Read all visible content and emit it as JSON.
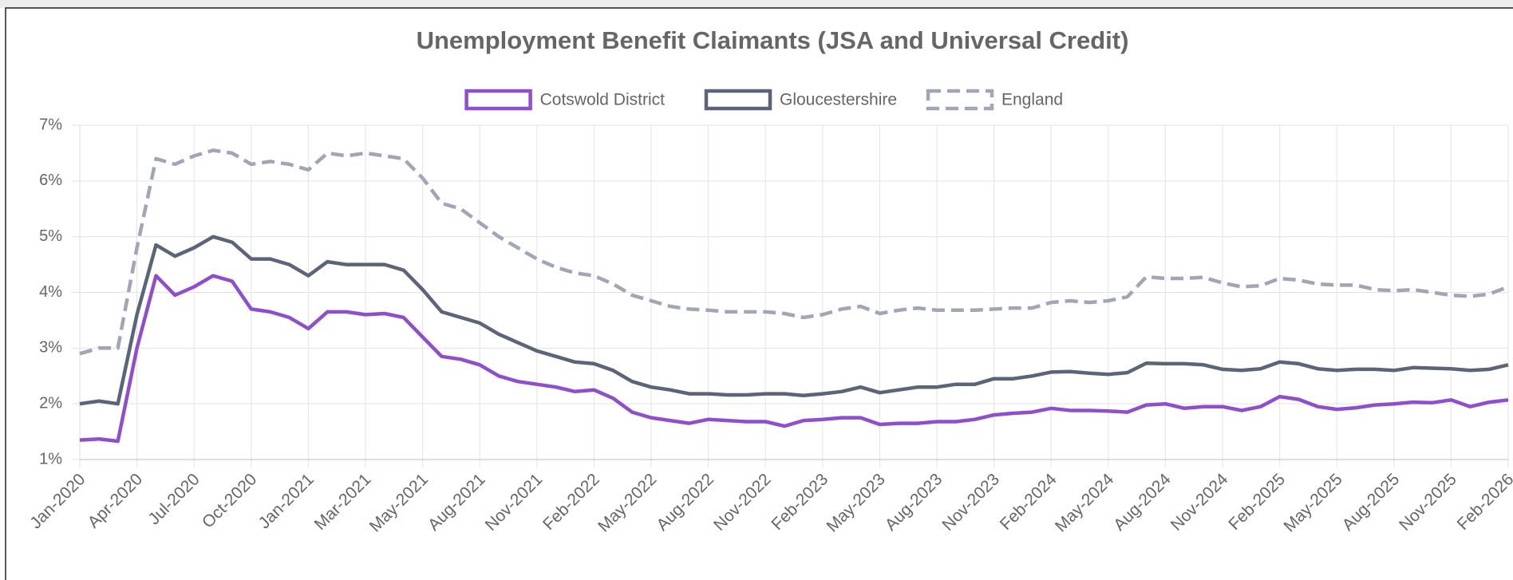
{
  "chart_data": {
    "type": "line",
    "title": "Unemployment Benefit Claimants (JSA and Universal Credit)",
    "categories": [
      "Jan-2020",
      null,
      null,
      "Apr-2020",
      null,
      null,
      "Jul-2020",
      null,
      null,
      "Oct-2020",
      null,
      null,
      "Jan-2021",
      null,
      null,
      "Mar-2021",
      null,
      null,
      "May-2021",
      null,
      null,
      "Aug-2021",
      null,
      null,
      "Nov-2021",
      null,
      null,
      "Feb-2022",
      null,
      null,
      "May-2022",
      null,
      null,
      "Aug-2022",
      null,
      null,
      "Nov-2022",
      null,
      null,
      "Feb-2023",
      null,
      null,
      "May-2023",
      null,
      null,
      "Aug-2023",
      null,
      null,
      "Nov-2023",
      null,
      null,
      "Feb-2024",
      null,
      null,
      "May-2024",
      null,
      null,
      "Aug-2024",
      null,
      null,
      "Nov-2024",
      null,
      null,
      "Feb-2025",
      null,
      null,
      "May-2025",
      null,
      null,
      "Aug-2025",
      null,
      null,
      "Nov-2025",
      null,
      null,
      "Feb-2026"
    ],
    "series": [
      {
        "name": "Cotswold District",
        "color": "#8f4fcb",
        "dashed": false,
        "values": [
          1.35,
          1.37,
          1.33,
          3.0,
          4.3,
          3.95,
          4.1,
          4.3,
          4.2,
          3.7,
          3.65,
          3.55,
          3.35,
          3.65,
          3.65,
          3.6,
          3.62,
          3.55,
          3.2,
          2.85,
          2.8,
          2.7,
          2.5,
          2.4,
          2.35,
          2.3,
          2.22,
          2.25,
          2.1,
          1.85,
          1.75,
          1.7,
          1.65,
          1.72,
          1.7,
          1.68,
          1.68,
          1.6,
          1.7,
          1.72,
          1.75,
          1.75,
          1.63,
          1.65,
          1.65,
          1.68,
          1.68,
          1.72,
          1.8,
          1.83,
          1.85,
          1.92,
          1.88,
          1.88,
          1.87,
          1.85,
          1.98,
          2.0,
          1.92,
          1.95,
          1.95,
          1.88,
          1.95,
          2.13,
          2.08,
          1.95,
          1.9,
          1.93,
          1.98,
          2.0,
          2.03,
          2.02,
          2.07,
          1.95,
          2.03,
          2.07
        ]
      },
      {
        "name": "Gloucestershire",
        "color": "#5b6478",
        "dashed": false,
        "values": [
          2.0,
          2.05,
          2.0,
          3.6,
          4.85,
          4.65,
          4.8,
          5.0,
          4.9,
          4.6,
          4.6,
          4.5,
          4.3,
          4.55,
          4.5,
          4.5,
          4.5,
          4.4,
          4.05,
          3.65,
          3.55,
          3.45,
          3.25,
          3.1,
          2.95,
          2.85,
          2.75,
          2.72,
          2.6,
          2.4,
          2.3,
          2.25,
          2.18,
          2.18,
          2.16,
          2.16,
          2.18,
          2.18,
          2.15,
          2.18,
          2.22,
          2.3,
          2.2,
          2.25,
          2.3,
          2.3,
          2.35,
          2.35,
          2.45,
          2.45,
          2.5,
          2.57,
          2.58,
          2.55,
          2.53,
          2.56,
          2.73,
          2.72,
          2.72,
          2.7,
          2.62,
          2.6,
          2.63,
          2.75,
          2.72,
          2.63,
          2.6,
          2.62,
          2.62,
          2.6,
          2.65,
          2.64,
          2.63,
          2.6,
          2.62,
          2.7
        ]
      },
      {
        "name": "England",
        "color": "#a0a6b5",
        "dashed": true,
        "values": [
          2.9,
          3.0,
          3.0,
          4.8,
          6.4,
          6.3,
          6.45,
          6.55,
          6.5,
          6.3,
          6.35,
          6.3,
          6.2,
          6.5,
          6.45,
          6.5,
          6.45,
          6.4,
          6.05,
          5.6,
          5.5,
          5.25,
          5.0,
          4.8,
          4.6,
          4.45,
          4.35,
          4.3,
          4.15,
          3.95,
          3.85,
          3.75,
          3.7,
          3.68,
          3.65,
          3.65,
          3.65,
          3.62,
          3.55,
          3.6,
          3.7,
          3.75,
          3.62,
          3.68,
          3.72,
          3.68,
          3.68,
          3.68,
          3.7,
          3.72,
          3.72,
          3.82,
          3.85,
          3.82,
          3.85,
          3.92,
          4.28,
          4.25,
          4.25,
          4.27,
          4.17,
          4.1,
          4.12,
          4.25,
          4.22,
          4.15,
          4.13,
          4.13,
          4.05,
          4.03,
          4.05,
          4.0,
          3.95,
          3.93,
          3.97,
          4.1
        ]
      }
    ],
    "ylim": [
      1,
      7
    ],
    "yticks": [
      {
        "value": 1,
        "label": "1%"
      },
      {
        "value": 2,
        "label": "2%"
      },
      {
        "value": 3,
        "label": "3%"
      },
      {
        "value": 4,
        "label": "4%"
      },
      {
        "value": 5,
        "label": "5%"
      },
      {
        "value": 6,
        "label": "6%"
      },
      {
        "value": 7,
        "label": "7%"
      }
    ],
    "grid": true,
    "legend": "top"
  }
}
